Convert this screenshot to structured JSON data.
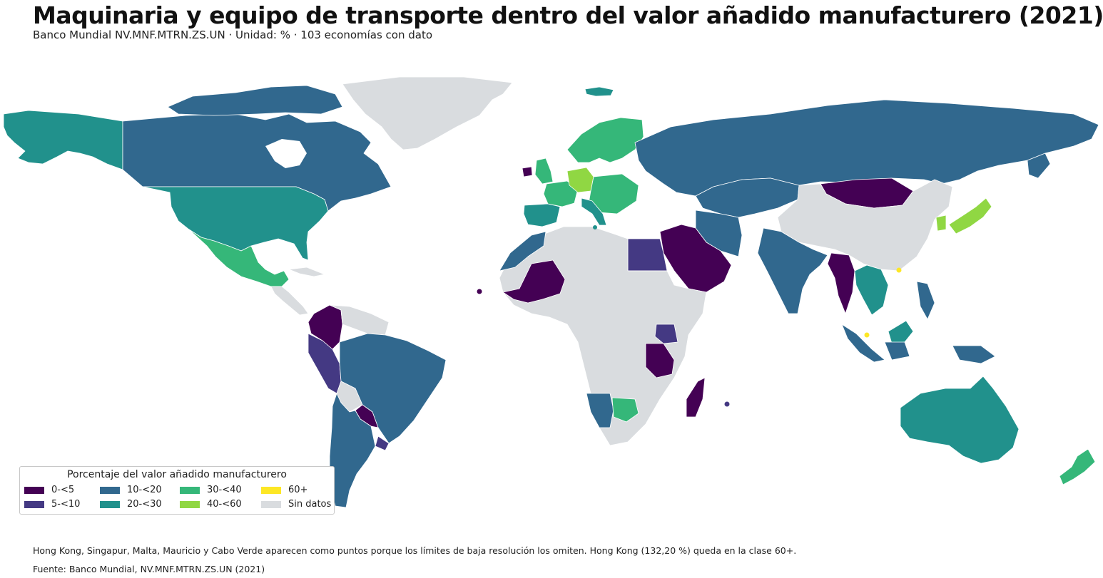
{
  "header": {
    "title": "Maquinaria y equipo de transporte dentro del valor añadido manufacturero (2021)",
    "subtitle": "Banco Mundial NV.MNF.MTRN.ZS.UN · Unidad: % · 103 economías con dato"
  },
  "legend": {
    "title": "Porcentaje del valor añadido manufacturero",
    "items": [
      {
        "label": "0-<5",
        "color": "#440154"
      },
      {
        "label": "5-<10",
        "color": "#443983"
      },
      {
        "label": "10-<20",
        "color": "#31688e"
      },
      {
        "label": "20-<30",
        "color": "#21918c"
      },
      {
        "label": "30-<40",
        "color": "#35b779"
      },
      {
        "label": "40-<60",
        "color": "#90d743"
      },
      {
        "label": "60+",
        "color": "#fde725"
      },
      {
        "label": "Sin datos",
        "color": "#d9dcdf"
      }
    ]
  },
  "regions": [
    {
      "name": "Groenlandia",
      "cls": "Sin datos"
    },
    {
      "name": "Canadá",
      "cls": "10-<20"
    },
    {
      "name": "Alaska",
      "cls": "20-<30"
    },
    {
      "name": "Estados Unidos",
      "cls": "20-<30"
    },
    {
      "name": "México",
      "cls": "30-<40"
    },
    {
      "name": "Colombia",
      "cls": "0-<5"
    },
    {
      "name": "Perú",
      "cls": "5-<10"
    },
    {
      "name": "Brasil",
      "cls": "10-<20"
    },
    {
      "name": "Paraguay",
      "cls": "0-<5"
    },
    {
      "name": "Argentina",
      "cls": "10-<20"
    },
    {
      "name": "Bolivia",
      "cls": "Sin datos"
    },
    {
      "name": "Uruguay",
      "cls": "5-<10"
    },
    {
      "name": "Islandia",
      "cls": "20-<30"
    },
    {
      "name": "Escandinavia",
      "cls": "30-<40"
    },
    {
      "name": "Alemania",
      "cls": "40-<60"
    },
    {
      "name": "Francia",
      "cls": "30-<40"
    },
    {
      "name": "Iberia",
      "cls": "20-<30"
    },
    {
      "name": "Rusia",
      "cls": "10-<20"
    },
    {
      "name": "Mongolia",
      "cls": "0-<5"
    },
    {
      "name": "China",
      "cls": "Sin datos"
    },
    {
      "name": "India",
      "cls": "10-<20"
    },
    {
      "name": "Arabia Saudita",
      "cls": "0-<5"
    },
    {
      "name": "Egipto",
      "cls": "5-<10"
    },
    {
      "name": "Malí",
      "cls": "0-<5"
    },
    {
      "name": "África",
      "cls": "Sin datos"
    },
    {
      "name": "Tanzania",
      "cls": "0-<5"
    },
    {
      "name": "Kenia",
      "cls": "5-<10"
    },
    {
      "name": "Namibia",
      "cls": "10-<20"
    },
    {
      "name": "Botsuana",
      "cls": "30-<40"
    },
    {
      "name": "Madagascar",
      "cls": "0-<5"
    },
    {
      "name": "Japón",
      "cls": "40-<60"
    },
    {
      "name": "Indonesia",
      "cls": "10-<20"
    },
    {
      "name": "Australia",
      "cls": "20-<30"
    },
    {
      "name": "Nueva Zelanda",
      "cls": "30-<40"
    }
  ],
  "footer": {
    "note": "Hong Kong, Singapur, Malta, Mauricio y Cabo Verde aparecen como puntos porque los límites de baja resolución los omiten. Hong Kong (132,20 %) queda en la clase 60+.",
    "source": "Fuente: Banco Mundial, NV.MNF.MTRN.ZS.UN (2021)"
  }
}
